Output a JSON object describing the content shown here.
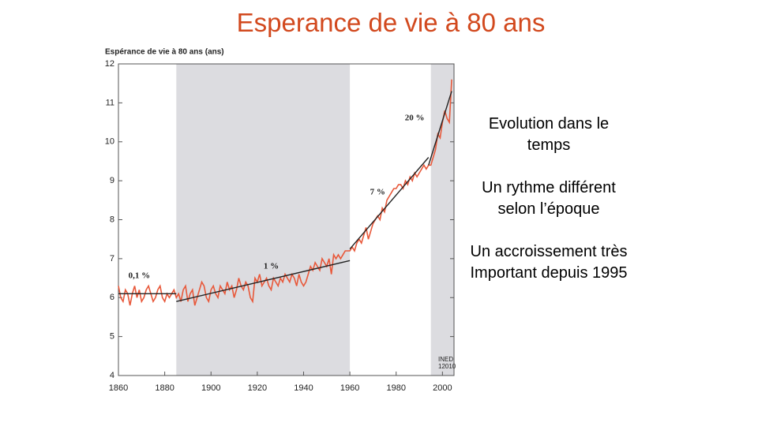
{
  "title": "Esperance de vie à 80 ans",
  "side_notes": [
    "Evolution dans le temps",
    "Un rythme différent selon l’époque",
    "Un accroissement très Important depuis 1995"
  ],
  "chart_data": {
    "type": "line",
    "y_axis_label": "Espérance de vie à 80 ans (ans)",
    "source_lines": [
      "INED",
      "12010"
    ],
    "xlim": [
      1860,
      2005
    ],
    "ylim": [
      4,
      12
    ],
    "xticks": [
      1860,
      1880,
      1900,
      1920,
      1940,
      1960,
      1980,
      2000
    ],
    "yticks": [
      4,
      5,
      6,
      7,
      8,
      9,
      10,
      11,
      12
    ],
    "shaded_periods": [
      [
        1885,
        1960
      ],
      [
        1995,
        2005
      ]
    ],
    "shade_color": "#dcdce0",
    "x": [
      1860,
      1861,
      1862,
      1863,
      1864,
      1865,
      1866,
      1867,
      1868,
      1869,
      1870,
      1871,
      1872,
      1873,
      1874,
      1875,
      1876,
      1877,
      1878,
      1879,
      1880,
      1881,
      1882,
      1883,
      1884,
      1885,
      1886,
      1887,
      1888,
      1889,
      1890,
      1891,
      1892,
      1893,
      1894,
      1895,
      1896,
      1897,
      1898,
      1899,
      1900,
      1901,
      1902,
      1903,
      1904,
      1905,
      1906,
      1907,
      1908,
      1909,
      1910,
      1911,
      1912,
      1913,
      1914,
      1915,
      1916,
      1917,
      1918,
      1919,
      1920,
      1921,
      1922,
      1923,
      1924,
      1925,
      1926,
      1927,
      1928,
      1929,
      1930,
      1931,
      1932,
      1933,
      1934,
      1935,
      1936,
      1937,
      1938,
      1939,
      1940,
      1941,
      1942,
      1943,
      1944,
      1945,
      1946,
      1947,
      1948,
      1949,
      1950,
      1951,
      1952,
      1953,
      1954,
      1955,
      1956,
      1957,
      1958,
      1959,
      1960,
      1961,
      1962,
      1963,
      1964,
      1965,
      1966,
      1967,
      1968,
      1969,
      1970,
      1971,
      1972,
      1973,
      1974,
      1975,
      1976,
      1977,
      1978,
      1979,
      1980,
      1981,
      1982,
      1983,
      1984,
      1985,
      1986,
      1987,
      1988,
      1989,
      1990,
      1991,
      1992,
      1993,
      1994,
      1995,
      1996,
      1997,
      1998,
      1999,
      2000,
      2001,
      2002,
      2003,
      2004
    ],
    "series": [
      {
        "color": "#e8583a",
        "values": [
          6.3,
          6.0,
          5.9,
          6.2,
          6.1,
          5.8,
          6.1,
          6.3,
          6.0,
          6.2,
          5.9,
          6.0,
          6.2,
          6.3,
          6.1,
          5.9,
          6.0,
          6.2,
          6.3,
          6.0,
          5.9,
          6.1,
          6.0,
          6.1,
          6.2,
          6.0,
          6.1,
          5.9,
          6.2,
          6.3,
          5.9,
          6.1,
          6.2,
          5.8,
          6.0,
          6.2,
          6.4,
          6.3,
          6.0,
          5.9,
          6.2,
          6.3,
          6.1,
          6.0,
          6.3,
          6.2,
          6.1,
          6.4,
          6.2,
          6.3,
          6.0,
          6.2,
          6.5,
          6.3,
          6.2,
          6.4,
          6.3,
          6.0,
          5.9,
          6.5,
          6.4,
          6.6,
          6.3,
          6.4,
          6.5,
          6.3,
          6.2,
          6.5,
          6.4,
          6.3,
          6.5,
          6.4,
          6.6,
          6.5,
          6.4,
          6.6,
          6.5,
          6.3,
          6.6,
          6.4,
          6.3,
          6.4,
          6.6,
          6.8,
          6.7,
          6.9,
          6.8,
          6.7,
          7.0,
          6.9,
          6.8,
          7.0,
          6.6,
          7.1,
          7.0,
          7.1,
          7.0,
          7.1,
          7.2,
          7.2,
          7.2,
          7.3,
          7.2,
          7.4,
          7.5,
          7.4,
          7.6,
          7.8,
          7.5,
          7.7,
          7.9,
          8.0,
          8.1,
          8.0,
          8.3,
          8.2,
          8.5,
          8.6,
          8.7,
          8.8,
          8.8,
          8.9,
          8.9,
          8.8,
          9.0,
          8.9,
          9.1,
          9.0,
          9.2,
          9.1,
          9.2,
          9.3,
          9.4,
          9.3,
          9.4,
          9.4,
          9.6,
          9.8,
          10.2,
          10.1,
          10.5,
          10.8,
          10.6,
          10.5,
          11.6
        ]
      }
    ],
    "trend_color": "#222222",
    "trend_lines": [
      {
        "x": [
          1860,
          1885
        ],
        "values": [
          6.1,
          6.1
        ]
      },
      {
        "x": [
          1885,
          1960
        ],
        "values": [
          5.9,
          6.95
        ]
      },
      {
        "x": [
          1960,
          1994
        ],
        "values": [
          7.25,
          9.6
        ]
      },
      {
        "x": [
          1994,
          2004
        ],
        "values": [
          9.4,
          11.3
        ]
      }
    ],
    "annotations": [
      {
        "text": "0,1 %",
        "x": 1869,
        "y": 6.55
      },
      {
        "text": "1 %",
        "x": 1926,
        "y": 6.8
      },
      {
        "text": "7 %",
        "x": 1972,
        "y": 8.7
      },
      {
        "text": "20 %",
        "x": 1988,
        "y": 10.6
      }
    ]
  }
}
